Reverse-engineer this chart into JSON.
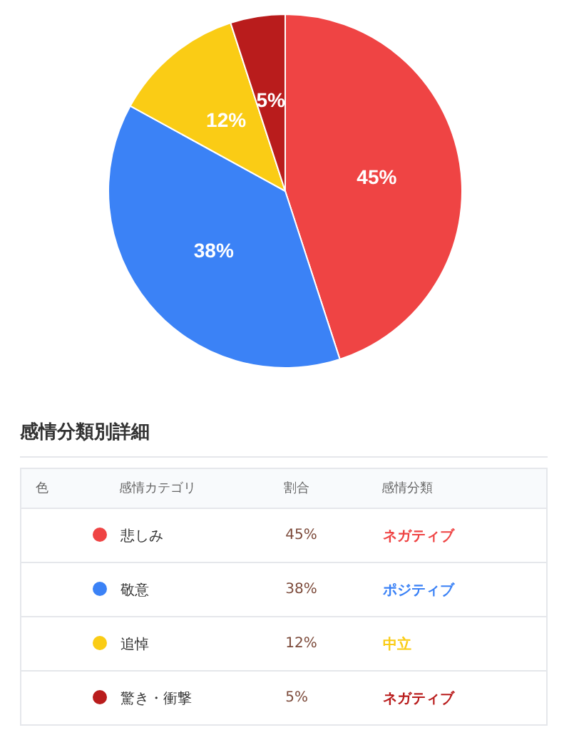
{
  "chart_data": {
    "type": "pie",
    "categories": [
      "悲しみ",
      "敬意",
      "追悼",
      "驚き・衝撃"
    ],
    "values": [
      45,
      38,
      12,
      5
    ],
    "value_labels": [
      "45%",
      "38%",
      "12%",
      "5%"
    ],
    "colors": [
      "#ef4444",
      "#3b82f6",
      "#facc15",
      "#b91c1c"
    ],
    "legend": "bottom",
    "annotations": [
      "感情分類別詳細",
      "色",
      "感情カテゴリ",
      "割合",
      "感情分類",
      "ネガティブ",
      "ポジティブ",
      "中立",
      "ネガティブ"
    ]
  }
}
